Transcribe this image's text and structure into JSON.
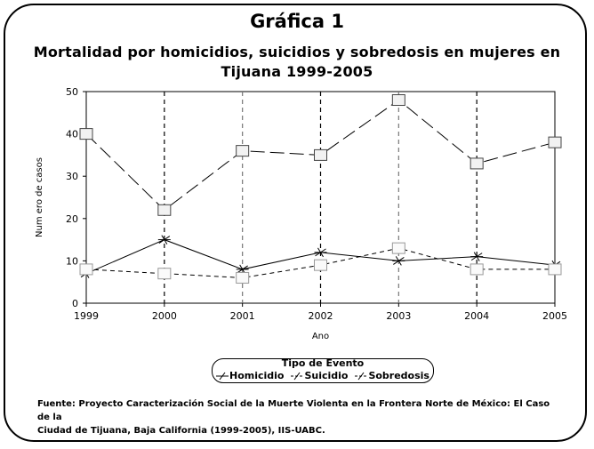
{
  "title": "Gráfica 1",
  "subtitle_line1": "Mortalidad por homicidios, suicidios y sobredosis en mujeres en",
  "subtitle_line2": "Tijuana 1999-2005",
  "chart_data": {
    "type": "line",
    "x": [
      1999,
      2000,
      2001,
      2002,
      2003,
      2004,
      2005
    ],
    "x_tick_labels": [
      "1999",
      "2000",
      "2001",
      "2002",
      "2003",
      "2004",
      "2005"
    ],
    "y_tick_labels": [
      "0",
      "10",
      "20",
      "30",
      "40",
      "50"
    ],
    "ylim": [
      0,
      50
    ],
    "xlabel": "Ano",
    "ylabel": "Num ero de casos",
    "series": [
      {
        "name": "Homicidio",
        "values": [
          7,
          15,
          8,
          12,
          10,
          11,
          9
        ],
        "color": "#000000",
        "dash": "solid",
        "marker": "x"
      },
      {
        "name": "Suicidio",
        "values": [
          8,
          7,
          6,
          9,
          13,
          8,
          8
        ],
        "color": "#000000",
        "dash": "dashed",
        "marker": "square-light"
      },
      {
        "name": "Sobredosis",
        "values": [
          40,
          22,
          36,
          35,
          48,
          33,
          38
        ],
        "color": "#000000",
        "dash": "longdash",
        "marker": "square"
      }
    ],
    "legend_title": "Tipo de Evento",
    "legend_position": "bottom-center"
  },
  "source_line1": "Fuente: Proyecto Caracterización Social de la Muerte Violenta en la Frontera Norte de México: El Caso de la",
  "source_line2": "Ciudad de Tijuana, Baja California (1999-2005), IIS-UABC."
}
